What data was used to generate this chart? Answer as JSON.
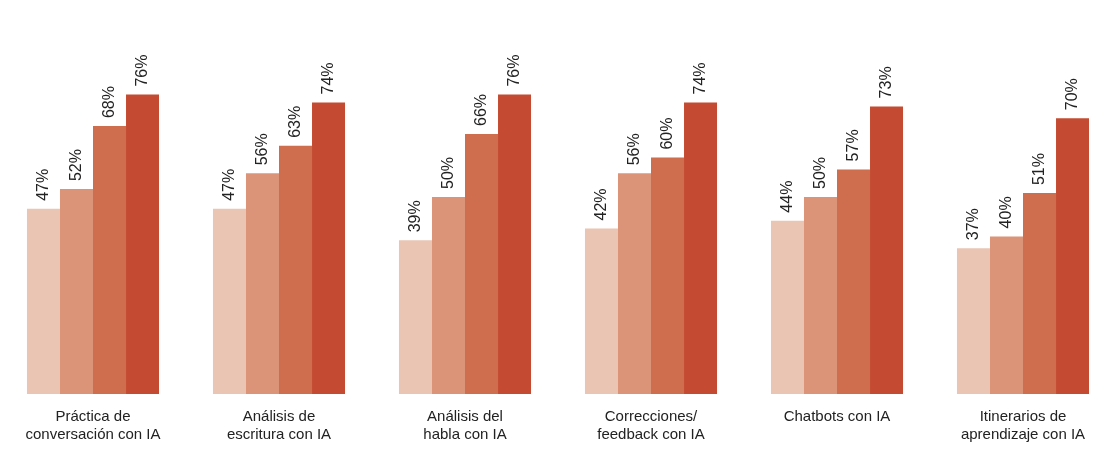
{
  "chart_data": {
    "type": "bar",
    "categories": [
      "Práctica de\nconversación con IA",
      "Análisis de\nescritura con IA",
      "Análisis del\nhabla con IA",
      "Correcciones/\nfeedback con IA",
      "Chatbots con IA",
      "Itinerarios de\naprendizaje con IA"
    ],
    "series": [
      {
        "color": "#eac5b4",
        "values": [
          47,
          47,
          39,
          42,
          44,
          37
        ],
        "value_labels": [
          "47%",
          "47%",
          "39%",
          "42%",
          "44%",
          "37%"
        ]
      },
      {
        "color": "#dc9479",
        "values": [
          52,
          56,
          50,
          56,
          50,
          40
        ],
        "value_labels": [
          "52%",
          "56%",
          "50%",
          "56%",
          "50%",
          "40%"
        ]
      },
      {
        "color": "#cf6d4f",
        "values": [
          68,
          63,
          66,
          60,
          57,
          51
        ],
        "value_labels": [
          "68%",
          "63%",
          "66%",
          "60%",
          "57%",
          "51%"
        ]
      },
      {
        "color": "#c44b31",
        "values": [
          76,
          74,
          76,
          74,
          73,
          70
        ],
        "value_labels": [
          "76%",
          "74%",
          "76%",
          "74%",
          "73%",
          "70%"
        ]
      }
    ],
    "tick_labels": "x",
    "grid": false,
    "legend": false
  }
}
